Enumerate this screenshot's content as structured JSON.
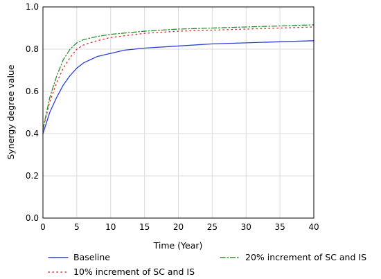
{
  "chart_data": {
    "type": "line",
    "title": "",
    "xlabel": "Time (Year)",
    "ylabel": "Synergy degree value",
    "xlim": [
      0,
      40
    ],
    "ylim": [
      0.0,
      1.0
    ],
    "xticks": [
      0,
      5,
      10,
      15,
      20,
      25,
      30,
      35,
      40
    ],
    "xtick_labels": [
      "0",
      "5",
      "10",
      "15",
      "20",
      "25",
      "30",
      "35",
      "40"
    ],
    "yticks": [
      0.0,
      0.2,
      0.4,
      0.6,
      0.8,
      1.0
    ],
    "ytick_labels": [
      "0.0",
      "0.2",
      "0.4",
      "0.6",
      "0.8",
      "1.0"
    ],
    "grid": true,
    "legend_position": "bottom",
    "series": [
      {
        "name": "Baseline",
        "color": "#2b3fd6",
        "style": "solid",
        "x": [
          0,
          1,
          2,
          3,
          4,
          5,
          6,
          7,
          8,
          10,
          12,
          15,
          20,
          25,
          30,
          35,
          40
        ],
        "y": [
          0.4,
          0.5,
          0.57,
          0.63,
          0.675,
          0.71,
          0.735,
          0.75,
          0.765,
          0.78,
          0.795,
          0.805,
          0.815,
          0.825,
          0.83,
          0.835,
          0.84
        ]
      },
      {
        "name": "10% increment of SC and IS",
        "color": "#e0342a",
        "style": "dotted",
        "x": [
          0,
          1,
          2,
          3,
          4,
          5,
          6,
          8,
          10,
          15,
          20,
          25,
          30,
          35,
          40
        ],
        "y": [
          0.42,
          0.55,
          0.64,
          0.71,
          0.76,
          0.8,
          0.82,
          0.84,
          0.855,
          0.875,
          0.885,
          0.89,
          0.895,
          0.9,
          0.905
        ]
      },
      {
        "name": "20% increment of SC and IS",
        "color": "#2e8b2e",
        "style": "dashdot",
        "x": [
          0,
          1,
          2,
          3,
          4,
          5,
          6,
          8,
          10,
          15,
          20,
          25,
          30,
          35,
          40
        ],
        "y": [
          0.42,
          0.57,
          0.67,
          0.75,
          0.8,
          0.83,
          0.845,
          0.86,
          0.87,
          0.885,
          0.895,
          0.9,
          0.905,
          0.91,
          0.915
        ]
      }
    ]
  }
}
